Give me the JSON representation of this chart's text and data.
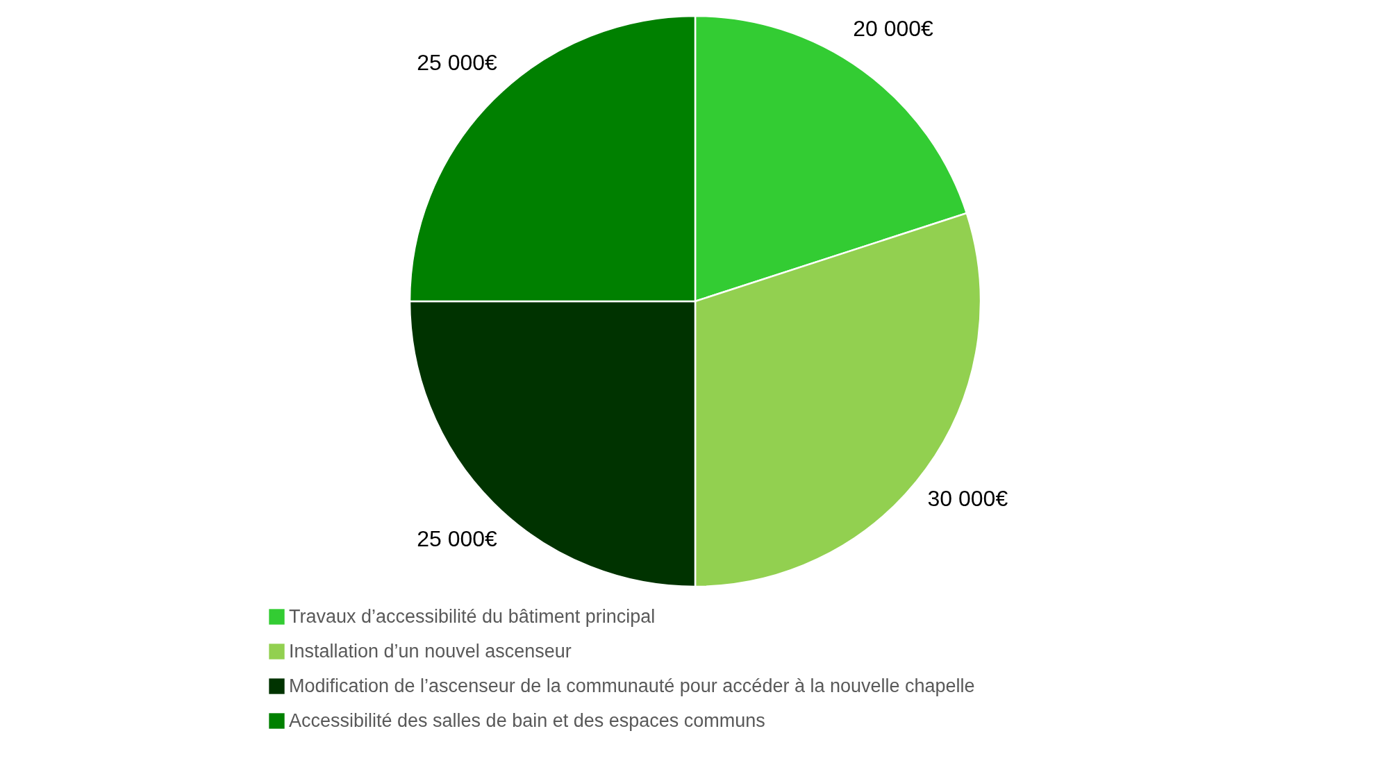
{
  "chart_data": {
    "type": "pie",
    "categories": [
      "Travaux d’accessibilité du bâtiment principal",
      "Installation d’un nouvel ascenseur",
      "Modification de l’ascenseur de la communauté pour accéder à la nouvelle chapelle",
      "Accessibilité des salles de bain et des espaces communs"
    ],
    "values": [
      20000,
      30000,
      25000,
      25000
    ],
    "value_labels": [
      "20 000€",
      "30 000€",
      "25 000€",
      "25 000€"
    ],
    "colors": [
      "#33cc33",
      "#92d050",
      "#003300",
      "#008000"
    ],
    "legend": "bottom"
  }
}
